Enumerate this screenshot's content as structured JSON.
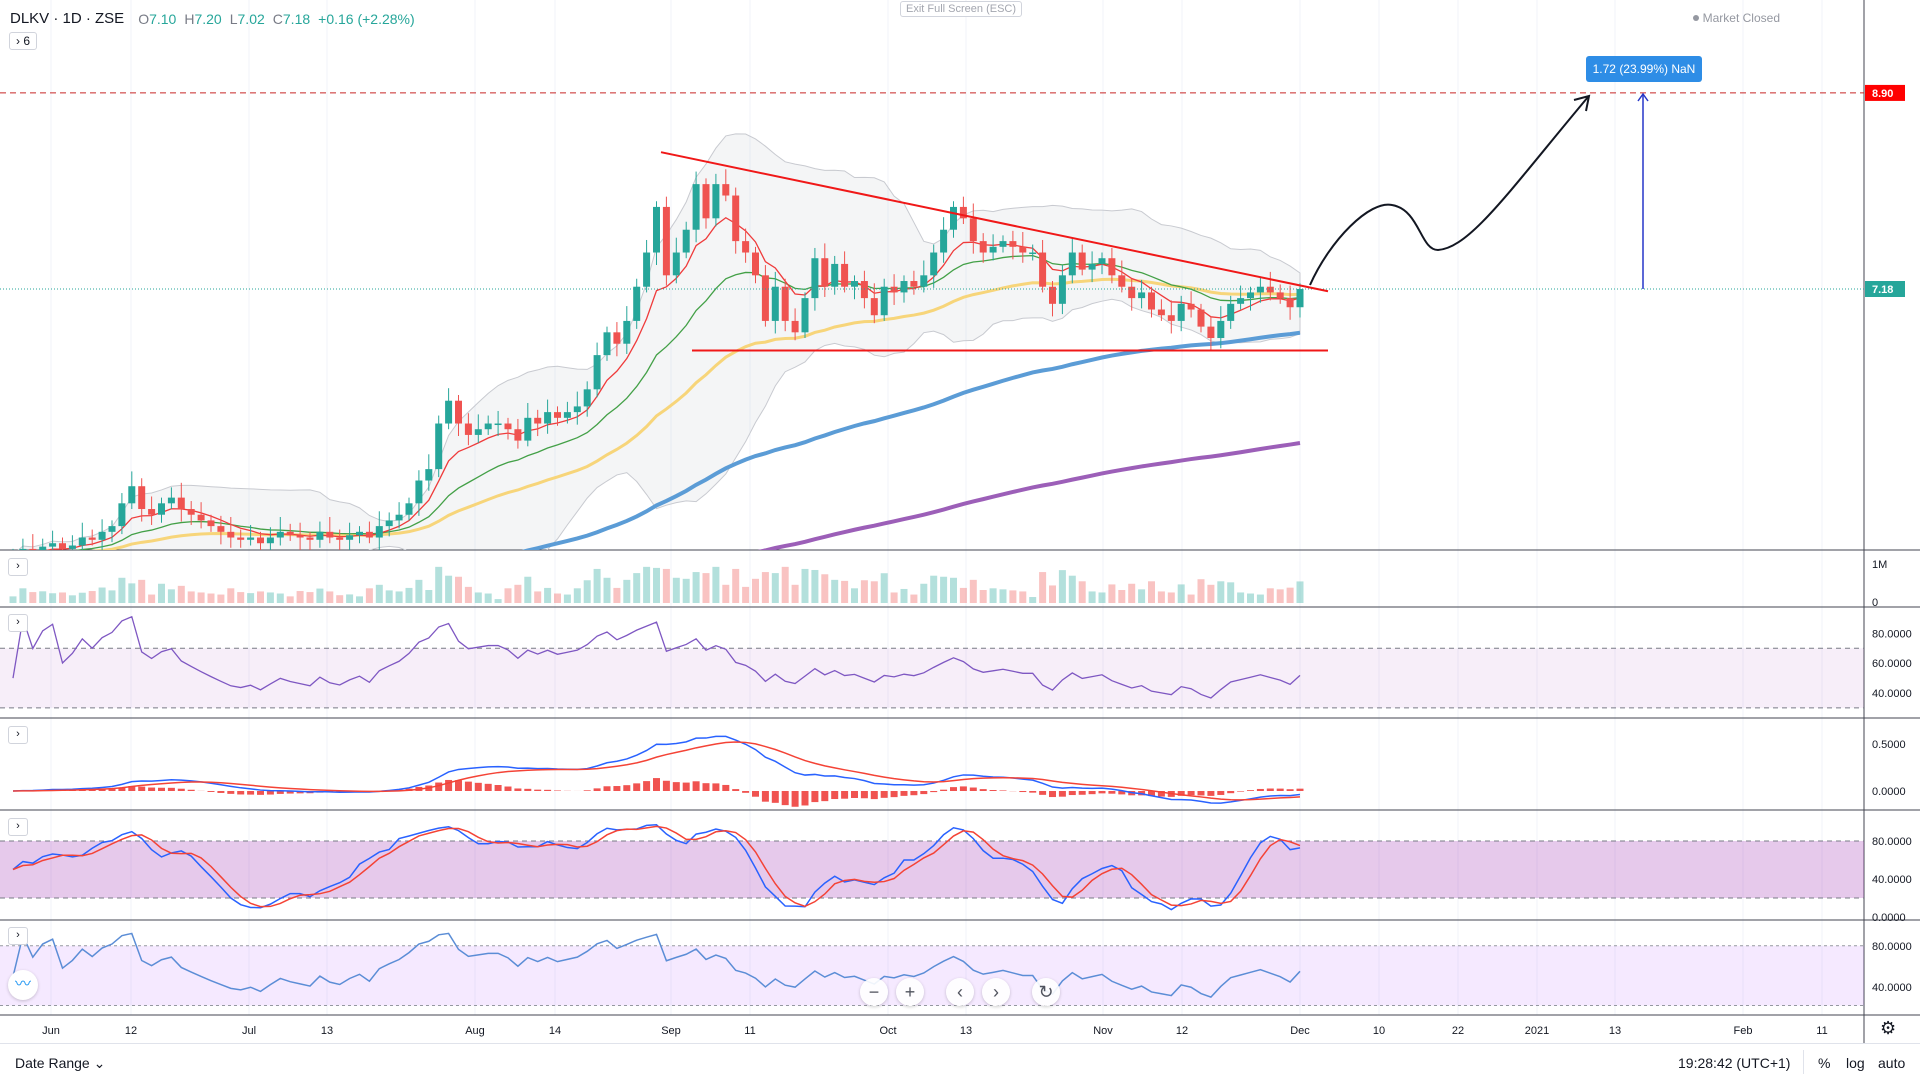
{
  "header": {
    "symbol": "DLKV · 1D · ZSE",
    "open_label": "O",
    "open": "7.10",
    "high_label": "H",
    "high": "7.20",
    "low_label": "L",
    "low": "7.02",
    "close_label": "C",
    "close": "7.18",
    "change": "+0.16 (+2.28%)",
    "indicators_toggle": "› 6",
    "exit_fullscreen": "Exit Full Screen (ESC)",
    "market_status": "Market Closed"
  },
  "colors": {
    "up": "#26a69a",
    "down": "#ef5350",
    "target": "#ff0000",
    "measure": "#2e8de6"
  },
  "price_axis": {
    "target_label": "8.90",
    "last_label": "7.18"
  },
  "measure_label": "1.72 (23.99%) NaN",
  "volume_axis": [
    "1M",
    "0"
  ],
  "rsi_axis": [
    "80.0000",
    "60.0000",
    "40.0000"
  ],
  "macd_axis": [
    "0.5000",
    "0.0000"
  ],
  "stoch_axis": [
    "80.0000",
    "40.0000",
    "0.0000"
  ],
  "osc_axis": [
    "80.0000",
    "40.0000"
  ],
  "time_axis": [
    "Jun",
    "12",
    "Jul",
    "13",
    "Aug",
    "14",
    "Sep",
    "11",
    "Oct",
    "13",
    "Nov",
    "12",
    "Dec",
    "10",
    "22",
    "2021",
    "13",
    "Feb",
    "11"
  ],
  "nav": {
    "zoom_out": "−",
    "zoom_in": "+",
    "left": "‹",
    "right": "›",
    "reset": "↻"
  },
  "pane_toggle": "›",
  "bottom": {
    "date_range": "Date Range ⌄",
    "clock": "19:28:42 (UTC+1)",
    "percent": "%",
    "log": "log",
    "auto": "auto"
  },
  "chart_data": {
    "type": "candlestick",
    "symbol": "DLKV",
    "interval": "1D",
    "price_range": [
      4.89,
      9.5
    ],
    "target_price": 8.9,
    "last_price": 7.18,
    "closes": [
      4.85,
      4.9,
      4.88,
      4.92,
      4.95,
      4.9,
      4.93,
      5.0,
      4.98,
      5.05,
      5.1,
      5.3,
      5.45,
      5.25,
      5.2,
      5.3,
      5.35,
      5.25,
      5.2,
      5.15,
      5.1,
      5.05,
      5.0,
      4.98,
      5.0,
      4.95,
      5.0,
      5.05,
      5.02,
      5.0,
      4.98,
      5.05,
      5.0,
      4.98,
      5.02,
      5.05,
      5.0,
      5.1,
      5.15,
      5.2,
      5.3,
      5.5,
      5.6,
      6.0,
      6.2,
      6.0,
      5.9,
      5.95,
      6.0,
      6.0,
      5.95,
      5.85,
      6.05,
      6.0,
      6.1,
      6.05,
      6.1,
      6.15,
      6.3,
      6.6,
      6.8,
      6.7,
      6.9,
      7.2,
      7.5,
      7.9,
      7.3,
      7.5,
      7.7,
      8.1,
      7.8,
      8.1,
      8.0,
      7.6,
      7.5,
      7.3,
      6.9,
      7.2,
      6.9,
      6.8,
      7.1,
      7.45,
      7.2,
      7.4,
      7.2,
      7.25,
      7.1,
      6.95,
      7.2,
      7.15,
      7.25,
      7.2,
      7.3,
      7.5,
      7.7,
      7.9,
      7.8,
      7.6,
      7.5,
      7.55,
      7.6,
      7.55,
      7.5,
      7.5,
      7.2,
      7.05,
      7.3,
      7.5,
      7.35,
      7.4,
      7.45,
      7.3,
      7.2,
      7.1,
      7.15,
      7.0,
      6.95,
      6.9,
      7.05,
      7.0,
      6.85,
      6.75,
      6.9,
      7.05,
      7.1,
      7.15,
      7.2,
      7.15,
      7.1,
      7.02,
      7.18
    ],
    "drawings": {
      "resistance_line": [
        8.38,
        7.16
      ],
      "support_line": 6.64
    }
  }
}
